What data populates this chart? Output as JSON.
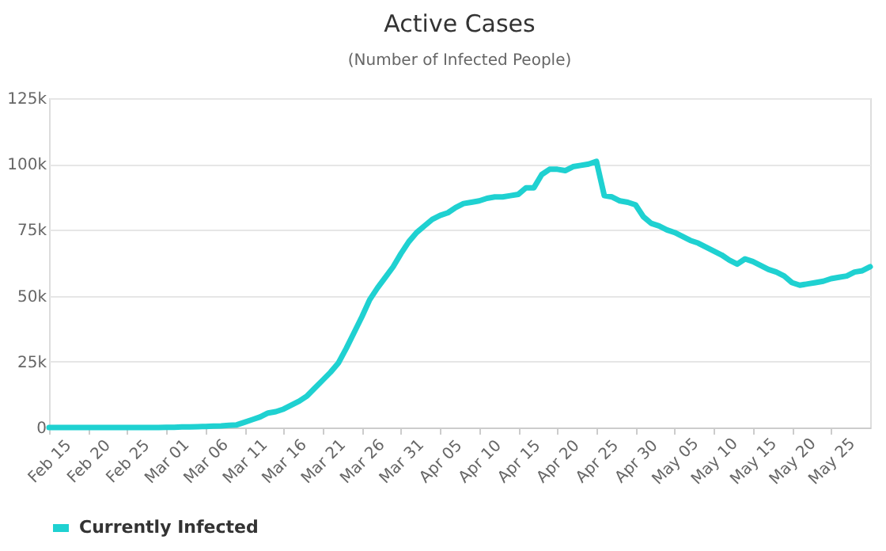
{
  "chart_data": {
    "type": "line",
    "title": "Active Cases",
    "subtitle": "(Number of Infected People)",
    "categories": [
      "Feb 15",
      null,
      null,
      null,
      null,
      "Feb 20",
      null,
      null,
      null,
      null,
      "Feb 25",
      null,
      null,
      null,
      null,
      "Mar 01",
      null,
      null,
      null,
      null,
      "Mar 06",
      null,
      null,
      null,
      null,
      "Mar 11",
      null,
      null,
      null,
      null,
      "Mar 16",
      null,
      null,
      null,
      null,
      "Mar 21",
      null,
      null,
      null,
      null,
      "Mar 26",
      null,
      null,
      null,
      null,
      "Mar 31",
      null,
      null,
      null,
      null,
      "Apr 05",
      null,
      null,
      null,
      null,
      "Apr 10",
      null,
      null,
      null,
      null,
      "Apr 15",
      null,
      null,
      null,
      null,
      "Apr 20",
      null,
      null,
      null,
      null,
      "Apr 25",
      null,
      null,
      null,
      null,
      "Apr 30",
      null,
      null,
      null,
      null,
      "May 05",
      null,
      null,
      null,
      null,
      "May 10",
      null,
      null,
      null,
      null,
      "May 15",
      null,
      null,
      null,
      null,
      "May 20",
      null,
      null,
      null,
      null,
      "May 25",
      null,
      null,
      null,
      null,
      null
    ],
    "series": [
      {
        "name": "Currently Infected",
        "color": "#1fd1d1",
        "values": [
          0,
          0,
          0,
          0,
          0,
          0,
          0,
          0,
          0,
          0,
          0,
          0,
          0,
          0,
          0,
          100,
          100,
          200,
          200,
          300,
          400,
          500,
          600,
          800,
          1000,
          2000,
          3000,
          4000,
          5500,
          6000,
          7000,
          8500,
          10000,
          12000,
          15000,
          18000,
          21000,
          24500,
          30000,
          36000,
          42000,
          48500,
          53000,
          57000,
          61000,
          66000,
          70500,
          74000,
          76500,
          79000,
          80500,
          81500,
          83500,
          85000,
          85500,
          86000,
          87000,
          87500,
          87500,
          88000,
          88500,
          91000,
          91000,
          96000,
          98000,
          98000,
          97500,
          99000,
          99500,
          100000,
          101000,
          88000,
          87500,
          86000,
          85500,
          84500,
          80000,
          77500,
          76500,
          75000,
          74000,
          72500,
          71000,
          70000,
          68500,
          67000,
          65500,
          63500,
          62000,
          64000,
          63000,
          61500,
          60000,
          59000,
          57500,
          55000,
          54000,
          54500,
          55000,
          55500,
          56500,
          57000,
          57500,
          59000,
          59500,
          61000
        ]
      }
    ],
    "ylim": [
      0,
      125000
    ],
    "yticks": [
      0,
      {
        "value": 25000,
        "label": "25k"
      },
      {
        "value": 50000,
        "label": "50k"
      },
      {
        "value": 75000,
        "label": "75k"
      },
      {
        "value": 100000,
        "label": "100k"
      },
      {
        "value": 125000,
        "label": "125k"
      }
    ],
    "grid": "y",
    "legend": "bottom",
    "marker": "none",
    "line_style": "solid"
  }
}
